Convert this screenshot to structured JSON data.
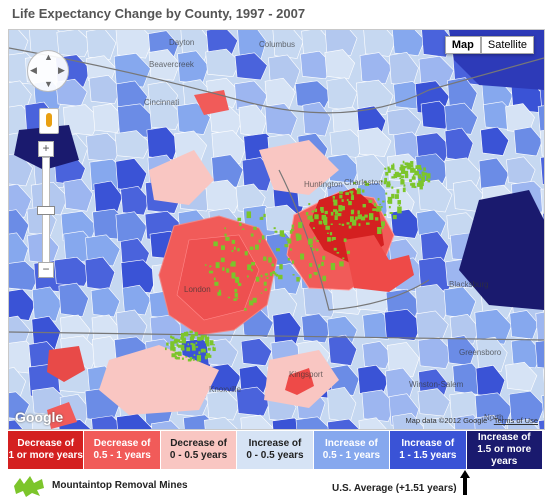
{
  "title": "Life Expectancy Change by County, 1997 - 2007",
  "map_controls": {
    "map_button": "Map",
    "satellite_button": "Satellite",
    "zoom_in": "+",
    "zoom_out": "−",
    "pan_up": "▲",
    "pan_down": "▼",
    "pan_left": "◀",
    "pan_right": "▶"
  },
  "attribution": {
    "logo": "Google",
    "copyright": "Map data ©2012 Google - ",
    "terms": "Terms of Use"
  },
  "places": [
    "Dayton",
    "Columbus",
    "Beavercreek",
    "Cincinnati",
    "Huntington",
    "Charleston",
    "Blacksburg",
    "Knoxville",
    "Kingsport",
    "Greensboro",
    "Winston-Salem",
    "London",
    "North"
  ],
  "legend": [
    {
      "label": "Decrease of 1 or more years",
      "line1": "Decrease of",
      "line2": "1 or more years",
      "color": "#d42020",
      "text_color": "#ffffff"
    },
    {
      "label": "Decrease of 0.5 - 1 years",
      "line1": "Decrease of",
      "line2": "0.5 - 1 years",
      "color": "#f15b59",
      "text_color": "#ffffff"
    },
    {
      "label": "Decrease of 0 - 0.5 years",
      "line1": "Decrease of",
      "line2": "0 - 0.5 years",
      "color": "#f9c6c2",
      "text_color": "#222222"
    },
    {
      "label": "Increase of 0 - 0.5 years",
      "line1": "Increase of",
      "line2": "0 - 0.5 years",
      "color": "#d6e3f5",
      "text_color": "#222222"
    },
    {
      "label": "Increase of 0.5 - 1 years",
      "line1": "Increase of",
      "line2": "0.5 - 1 years",
      "color": "#86a8ee",
      "text_color": "#ffffff"
    },
    {
      "label": "Increase of 1 - 1.5 years",
      "line1": "Increase of",
      "line2": "1 - 1.5 years",
      "color": "#3a53d6",
      "text_color": "#ffffff"
    },
    {
      "label": "Increase of 1.5 or more years",
      "line1": "Increase of",
      "line2": "1.5 or more years",
      "color": "#1a1a6e",
      "text_color": "#ffffff"
    }
  ],
  "mines_label": "Mountaintop Removal Mines",
  "mines_color": "#7cc52b",
  "us_average_label": "U.S. Average (+1.51 years)"
}
